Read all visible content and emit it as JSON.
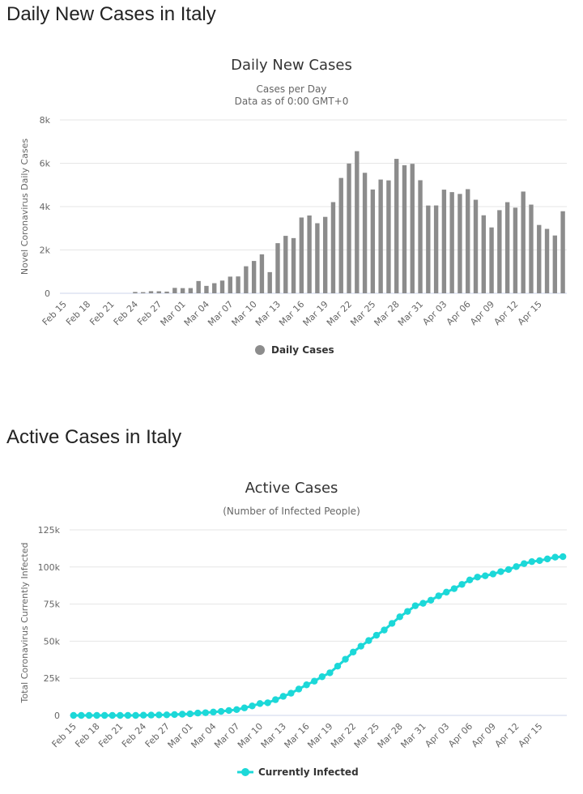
{
  "page": {
    "heading_daily": "Daily New Cases in Italy",
    "heading_active": "Active Cases in Italy"
  },
  "chart_data": [
    {
      "type": "bar",
      "title": "Daily New Cases",
      "subtitle_lines": [
        "Cases per Day",
        "Data as of 0:00 GMT+0"
      ],
      "ylabel": "Novel Coronavirus Daily Cases",
      "xlabel": "",
      "ylim": [
        0,
        8000
      ],
      "yticks": [
        0,
        2000,
        4000,
        6000,
        8000
      ],
      "ytick_labels": [
        "0",
        "2k",
        "4k",
        "6k",
        "8k"
      ],
      "grid": true,
      "legend": "bottom",
      "color": "#8c8c8c",
      "xtick_labels": [
        "Feb 15",
        "Feb 18",
        "Feb 21",
        "Feb 24",
        "Feb 27",
        "Mar 01",
        "Mar 04",
        "Mar 07",
        "Mar 10",
        "Mar 13",
        "Mar 16",
        "Mar 19",
        "Mar 22",
        "Mar 25",
        "Mar 28",
        "Mar 31",
        "Apr 03",
        "Apr 06",
        "Apr 09",
        "Apr 12",
        "Apr 15"
      ],
      "series": [
        {
          "name": "Daily Cases",
          "values": [
            0,
            0,
            0,
            0,
            0,
            0,
            0,
            0,
            0,
            62,
            53,
            97,
            93,
            78,
            250,
            238,
            240,
            566,
            342,
            466,
            587,
            769,
            778,
            1247,
            1492,
            1797,
            977,
            2313,
            2651,
            2547,
            3497,
            3590,
            3233,
            3526,
            4207,
            5322,
            5986,
            6557,
            5560,
            4789,
            5249,
            5210,
            6203,
            5909,
            5974,
            5217,
            4050,
            4053,
            4782,
            4668,
            4585,
            4805,
            4316,
            3599,
            3039,
            3836,
            4204,
            3951,
            4694,
            4092,
            3153,
            2972,
            2667,
            3786
          ]
        }
      ]
    },
    {
      "type": "line",
      "title": "Active Cases",
      "subtitle_lines": [
        "(Number of Infected People)"
      ],
      "ylabel": "Total Coronavirus Currently Infected",
      "xlabel": "",
      "ylim": [
        0,
        125000
      ],
      "yticks": [
        0,
        25000,
        50000,
        75000,
        100000,
        125000
      ],
      "ytick_labels": [
        "0",
        "25k",
        "50k",
        "75k",
        "100k",
        "125k"
      ],
      "grid": true,
      "legend": "bottom",
      "color": "#1cd8d8",
      "xtick_labels": [
        "Feb 15",
        "Feb 18",
        "Feb 21",
        "Feb 24",
        "Feb 27",
        "Mar 01",
        "Mar 04",
        "Mar 07",
        "Mar 10",
        "Mar 13",
        "Mar 16",
        "Mar 19",
        "Mar 22",
        "Mar 25",
        "Mar 28",
        "Mar 31",
        "Apr 03",
        "Apr 06",
        "Apr 09",
        "Apr 12",
        "Apr 15"
      ],
      "series": [
        {
          "name": "Currently Infected",
          "values": [
            3,
            3,
            3,
            3,
            3,
            3,
            3,
            3,
            3,
            150,
            221,
            311,
            385,
            588,
            821,
            1049,
            1577,
            1835,
            2263,
            2706,
            3296,
            3916,
            5061,
            6387,
            7985,
            8514,
            10590,
            12839,
            14955,
            17750,
            20603,
            23073,
            26062,
            28710,
            33190,
            37860,
            42681,
            46638,
            50418,
            54030,
            57521,
            62013,
            66414,
            70065,
            73880,
            75528,
            77635,
            80572,
            83049,
            85388,
            88274,
            91246,
            93187,
            94067,
            95262,
            96877,
            98273,
            100269,
            102253,
            103616,
            104291,
            105418,
            106607,
            106962
          ]
        }
      ]
    }
  ]
}
